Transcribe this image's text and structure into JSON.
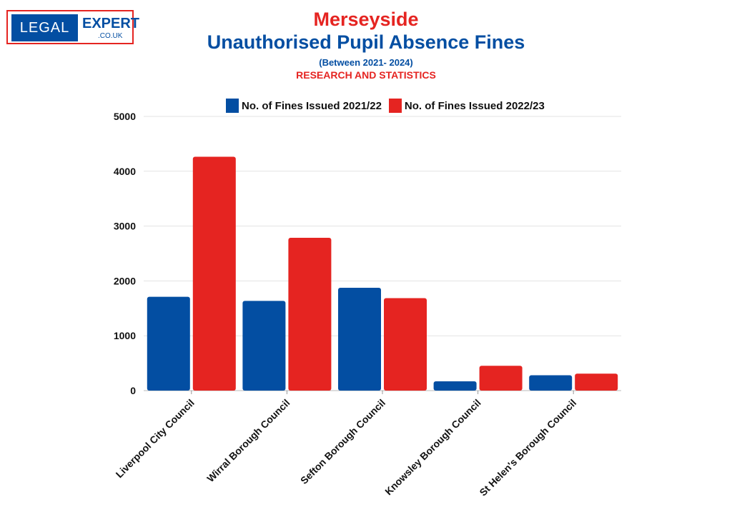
{
  "logo": {
    "left": "LEGAL",
    "right": "EXPERT",
    "sub": ".CO.UK"
  },
  "title": "Merseyside",
  "subtitle": "Unauthorised Pupil Absence Fines",
  "period": "(Between 2021- 2024)",
  "tagline": "RESEARCH AND STATISTICS",
  "colors": {
    "series1": "#034ea2",
    "series2": "#e52421"
  },
  "chart_data": {
    "type": "bar",
    "title": "Merseyside Unauthorised Pupil Absence Fines",
    "categories": [
      "Liverpool City Council",
      "Wirral Borough Council",
      "Sefton Borough Council",
      "Knowsley Borough Council",
      "St Helen's Borough Council"
    ],
    "series": [
      {
        "name": "No. of Fines Issued 2021/22",
        "values": [
          1710,
          1635,
          1875,
          170,
          280
        ]
      },
      {
        "name": "No. of Fines Issued 2022/23",
        "values": [
          4265,
          2787,
          1687,
          452,
          310
        ]
      }
    ],
    "ylim": [
      0,
      5000
    ],
    "yticks": [
      "0",
      "1000",
      "2000",
      "3000",
      "4000",
      "5000"
    ],
    "grid": true,
    "legend": "top"
  }
}
